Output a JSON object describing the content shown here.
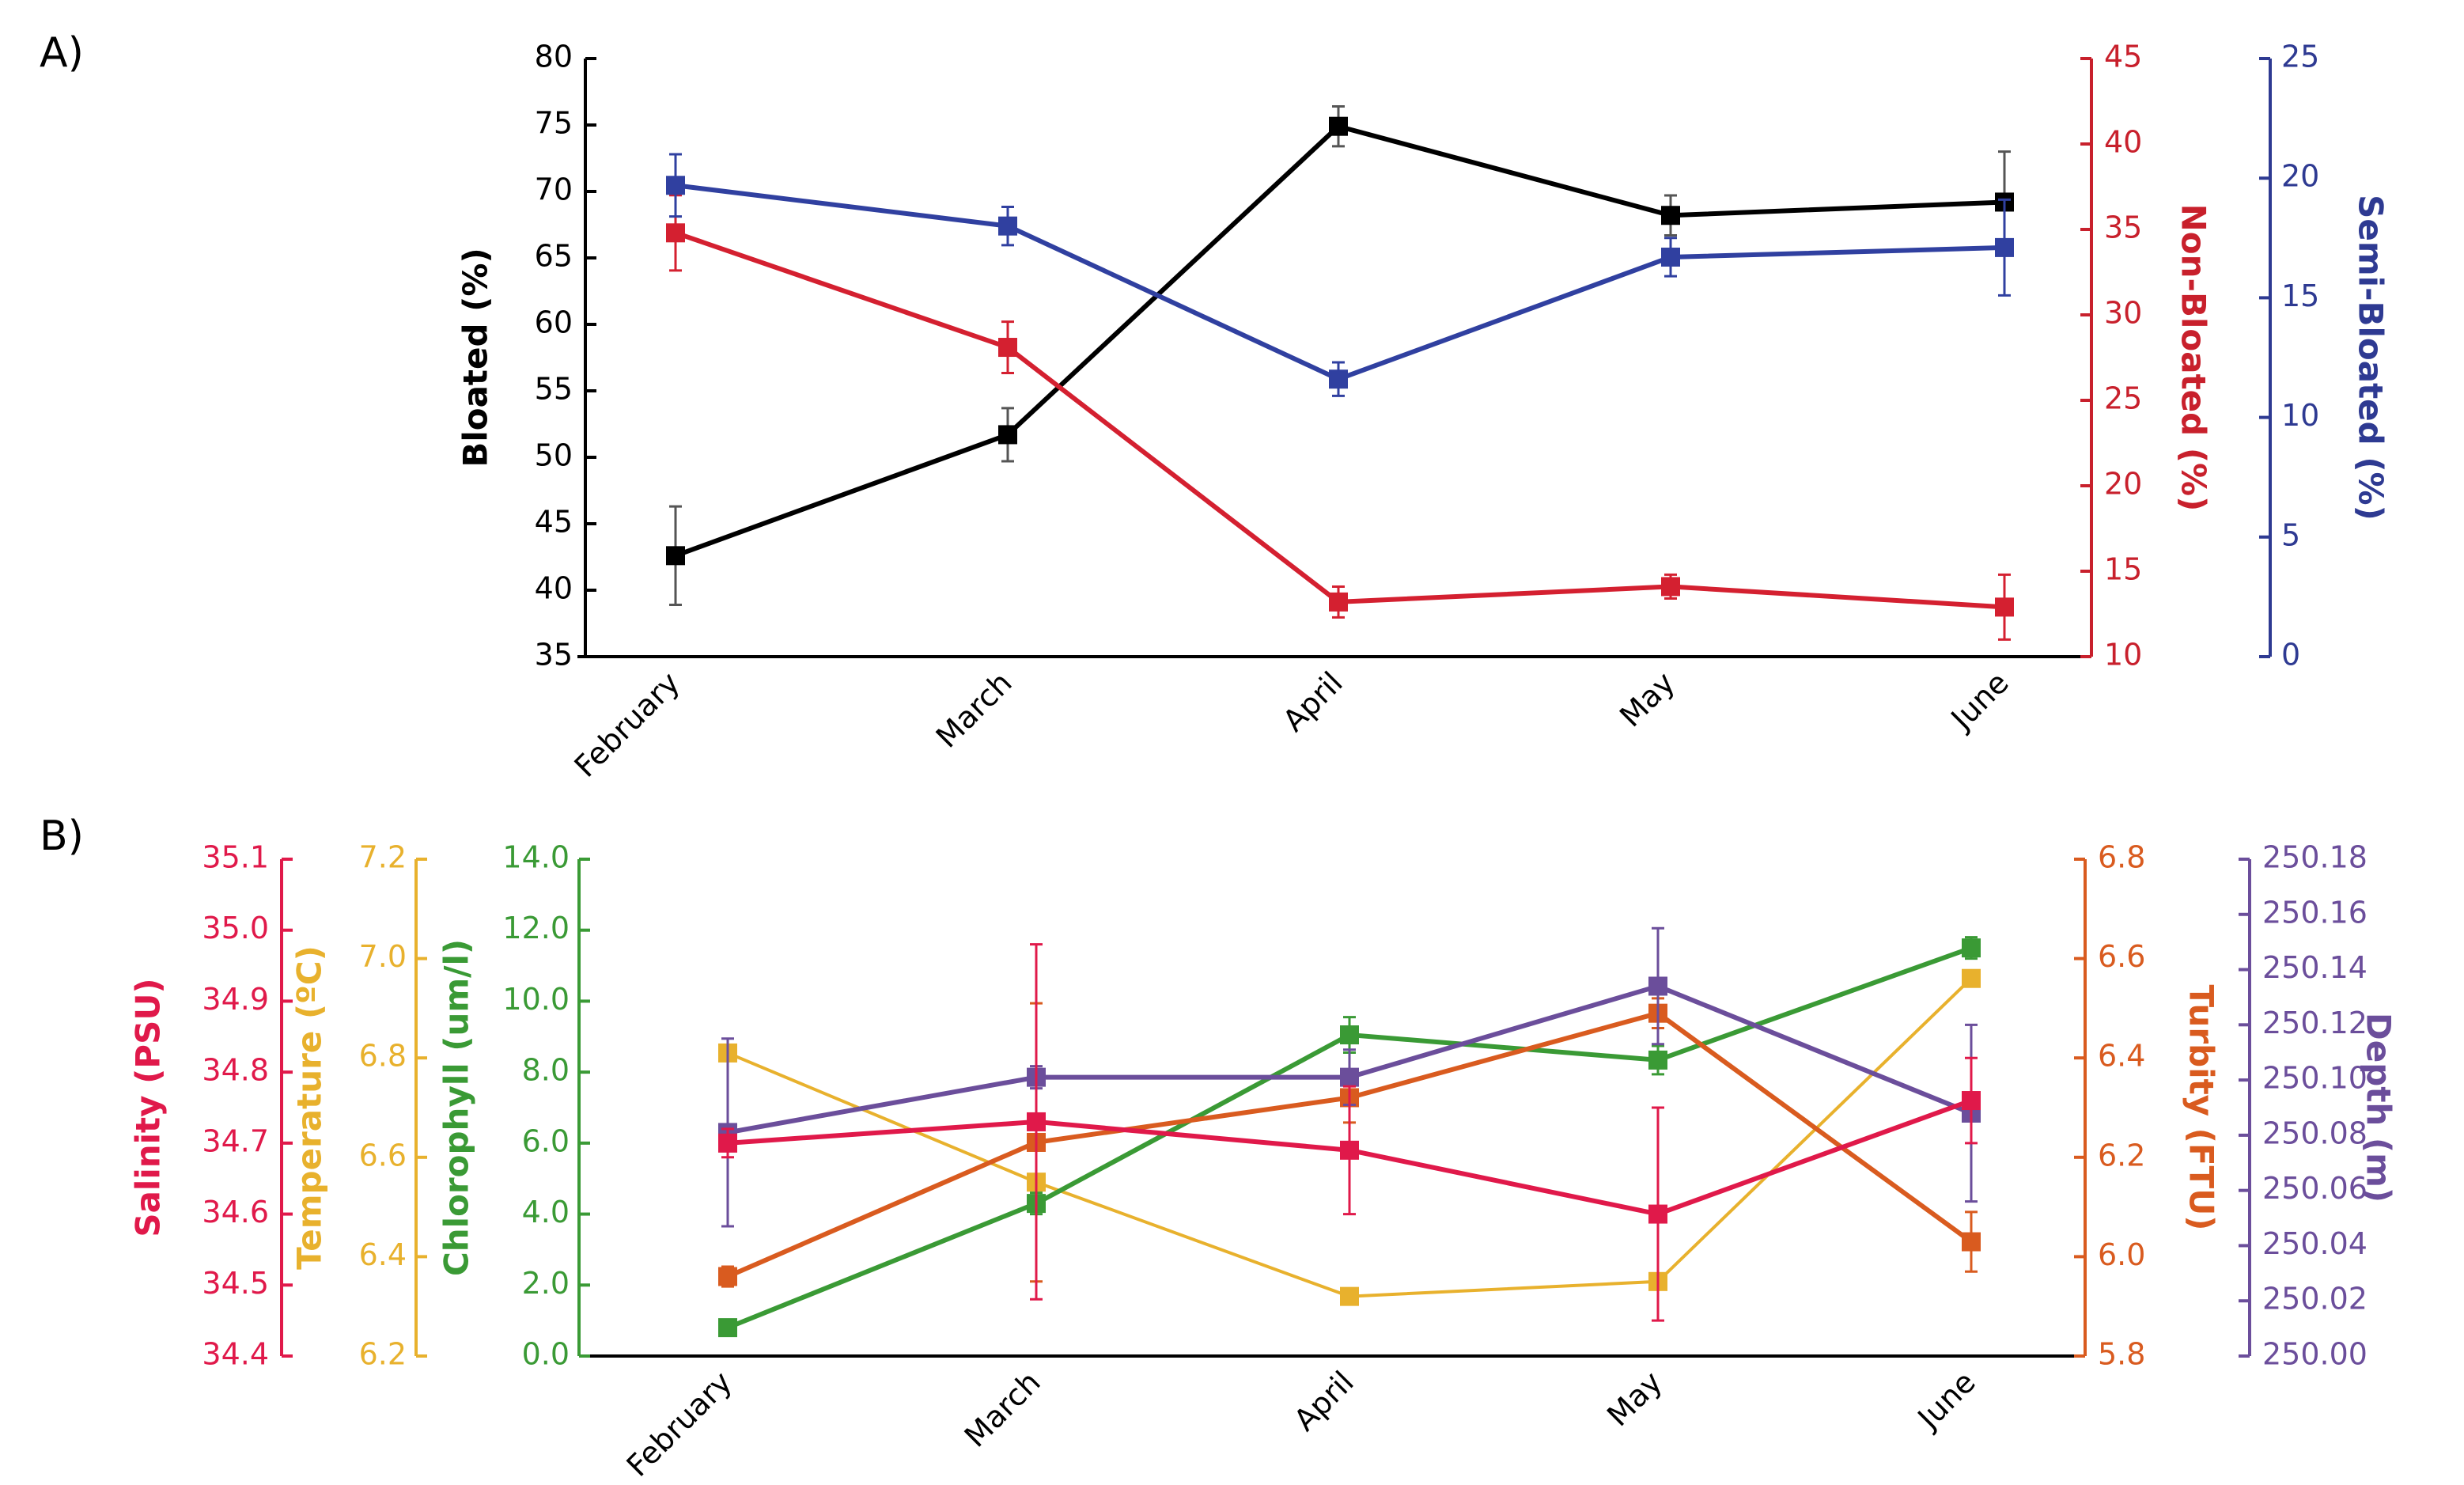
{
  "chart_data": [
    {
      "type": "line",
      "label": "A)",
      "categories": [
        "February",
        "March",
        "April",
        "May",
        "June"
      ],
      "ylabel": "Bloated (%)",
      "ylim": [
        35,
        80
      ],
      "yticks": [
        35,
        40,
        45,
        50,
        55,
        60,
        65,
        70,
        75,
        80
      ],
      "ycolor": "#000000",
      "y2label": "Non-Bloated (%)",
      "y2lim": [
        10,
        45
      ],
      "y2ticks": [
        10,
        15,
        20,
        25,
        30,
        35,
        40,
        45
      ],
      "y2color": "#c8202c",
      "y3label": "Semi-Bloated (%)",
      "y3lim": [
        0,
        25
      ],
      "y3ticks": [
        0,
        5,
        10,
        15,
        20,
        25
      ],
      "y3color": "#2e3a92",
      "series": [
        {
          "axis": "y",
          "color": "#000000",
          "values": [
            42.6,
            51.7,
            74.9,
            68.2,
            69.2
          ],
          "errors": [
            3.7,
            2.0,
            1.5,
            1.5,
            3.8
          ]
        },
        {
          "axis": "y2",
          "color": "#d42030",
          "values": [
            34.8,
            28.1,
            13.2,
            14.1,
            12.9
          ],
          "errors": [
            2.2,
            1.5,
            0.9,
            0.7,
            1.9
          ]
        },
        {
          "axis": "y3",
          "color": "#3040a0",
          "values": [
            19.7,
            18.0,
            11.6,
            16.7,
            17.1
          ],
          "errors": [
            1.3,
            0.8,
            0.7,
            0.8,
            2.0
          ]
        }
      ]
    },
    {
      "type": "line",
      "label": "B)",
      "categories": [
        "February",
        "March",
        "April",
        "May",
        "June"
      ],
      "ylabel": "Salinity (PSU)",
      "ylim": [
        34.4,
        35.1
      ],
      "yticks": [
        34.4,
        34.5,
        34.6,
        34.7,
        34.8,
        34.9,
        {
          "value": 35,
          "label": "35.0"
        },
        35.1
      ],
      "ycolor": "#e0194a",
      "y2label": "Temperature (ºC)",
      "y2lim": [
        6.2,
        7.2
      ],
      "y2ticks": [
        6.2,
        6.4,
        6.6,
        6.8,
        {
          "value": 7,
          "label": "7.0"
        },
        7.2
      ],
      "y2color": "#e8b12d",
      "y3label": "Chlorophyll (um/l)",
      "y3lim": [
        0,
        14
      ],
      "y3ticks": [
        {
          "value": 0,
          "label": "0.0"
        },
        {
          "value": 2,
          "label": "2.0"
        },
        {
          "value": 4,
          "label": "4.0"
        },
        {
          "value": 6,
          "label": "6.0"
        },
        {
          "value": 8,
          "label": "8.0"
        },
        {
          "value": 10,
          "label": "10.0"
        },
        {
          "value": 12,
          "label": "12.0"
        },
        {
          "value": 14,
          "label": "14.0"
        }
      ],
      "y3color": "#3a9a35",
      "y4label": "Turbity (FTU)",
      "y4lim": [
        5.8,
        6.8
      ],
      "y4ticks": [
        5.8,
        {
          "value": 6,
          "label": "6.0"
        },
        6.2,
        6.4,
        6.6,
        6.8
      ],
      "y4color": "#d95b1f",
      "y5label": "Depth (m)",
      "y5lim": [
        250,
        250.18
      ],
      "y5ticks": [
        {
          "value": 250,
          "label": "250.00"
        },
        250.02,
        250.04,
        250.06,
        250.08,
        {
          "value": 250.1,
          "label": "250.10"
        },
        250.12,
        250.14,
        250.16,
        250.18
      ],
      "y5color": "#6b4e9b",
      "series": [
        {
          "axis": "y2",
          "color": "#e8b12d",
          "values": [
            6.81,
            6.55,
            6.32,
            6.35,
            6.96
          ]
        },
        {
          "axis": "y3",
          "color": "#3a9a35",
          "values": [
            0.8,
            4.3,
            9.05,
            8.34,
            11.5
          ],
          "errors": [
            0.2,
            0.3,
            0.5,
            0.4,
            0.3
          ]
        },
        {
          "axis": "y4",
          "color": "#d95b1f",
          "values": [
            5.96,
            6.23,
            6.32,
            6.49,
            6.03
          ],
          "errors": [
            0.02,
            0.28,
            0.05,
            0.03,
            0.06
          ]
        },
        {
          "axis": "y5",
          "color": "#6b4e9b",
          "values": [
            250.081,
            250.101,
            250.101,
            250.134,
            250.088
          ],
          "errors": [
            0.034,
            0.004,
            0.01,
            0.021,
            0.032
          ]
        },
        {
          "axis": "y",
          "color": "#e0194a",
          "values": [
            34.7,
            34.73,
            34.69,
            34.6,
            34.76
          ],
          "errors": [
            0.02,
            0.25,
            0.09,
            0.15,
            0.06
          ]
        }
      ]
    }
  ]
}
